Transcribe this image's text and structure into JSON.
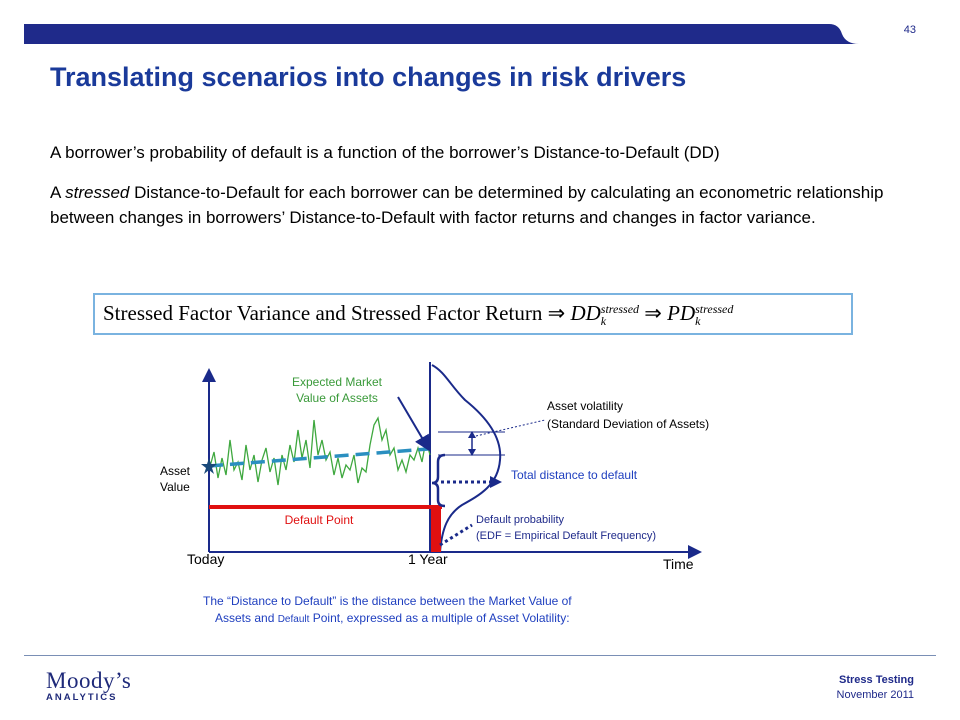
{
  "page_number": "43",
  "title": "Translating scenarios into changes in risk drivers",
  "paragraphs": {
    "p1": "A borrower’s probability of default is a function of the borrower’s Distance-to-Default (DD)",
    "p2_word": "A ",
    "p2_em": "stressed",
    "p2_rest": " Distance-to-Default for each borrower can be determined by calculating an econometric relationship between changes in borrowers’ Distance-to-Default with factor returns and changes in factor variance."
  },
  "formula": {
    "text": "Stressed Factor Variance and Stressed Factor Return",
    "arrow": "⇒",
    "dd": "DD",
    "pd": "PD",
    "sup": "stressed",
    "sub": "k"
  },
  "diagram": {
    "expected_label_1": "Expected Market",
    "expected_label_2": "Value of Assets",
    "asset_vol_1": "Asset volatility",
    "asset_vol_2": "(Standard Deviation of Assets)",
    "asset_value_1": "Asset",
    "asset_value_2": "Value",
    "total_distance": "Total distance to default",
    "default_point": "Default Point",
    "default_prob_1": "Default probability",
    "default_prob_2": "(EDF = Empirical Default Frequency)",
    "today": "Today",
    "one_year": "1 Year",
    "time": "Time",
    "caption_1": "The “Distance to Default” is the distance between the Market Value of",
    "caption_2a": "Assets and ",
    "caption_2b": "Default",
    "caption_2c": " Point, expressed as a multiple of Asset Volatility:"
  },
  "colors": {
    "navy": "#1a2a8a",
    "green": "#3fa83f",
    "teal": "#2a8fc0",
    "red": "#e01010",
    "label_green": "#3a9a3a",
    "blue_text": "#1f3fbf"
  },
  "footer": {
    "logo_main": "Moody’s",
    "logo_sub": "ANALYTICS",
    "section": "Stress Testing",
    "date": "November 2011"
  }
}
